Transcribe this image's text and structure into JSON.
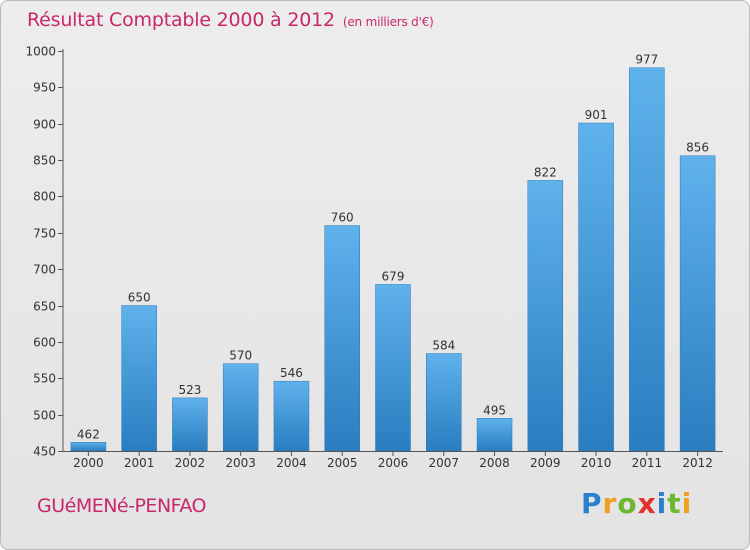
{
  "chart_data": {
    "type": "bar",
    "title": "Résultat Comptable 2000 à 2012",
    "subtitle": "(en milliers d'€)",
    "categories": [
      "2000",
      "2001",
      "2002",
      "2003",
      "2004",
      "2005",
      "2006",
      "2007",
      "2008",
      "2009",
      "2010",
      "2011",
      "2012"
    ],
    "values": [
      462,
      650,
      523,
      570,
      546,
      760,
      679,
      584,
      495,
      822,
      901,
      977,
      856
    ],
    "ylim": [
      450,
      1000
    ],
    "yticks": [
      450,
      500,
      550,
      600,
      650,
      700,
      750,
      800,
      850,
      900,
      950,
      1000
    ],
    "xlabel": "",
    "ylabel": "",
    "grid": false,
    "bar_color": "#3a96d8"
  },
  "location": "GUéMENé-PENFAO",
  "logo": {
    "text": "Proxiti",
    "letters": [
      "P",
      "r",
      "o",
      "x",
      "i",
      "t",
      "i"
    ],
    "colors": [
      "#2b7fd1",
      "#f0a020",
      "#6bb82f",
      "#e0332b",
      "#2b7fd1",
      "#6bb82f",
      "#f0a020"
    ]
  },
  "colors": {
    "accent": "#c8286a",
    "axis": "#555555",
    "text": "#333333"
  }
}
